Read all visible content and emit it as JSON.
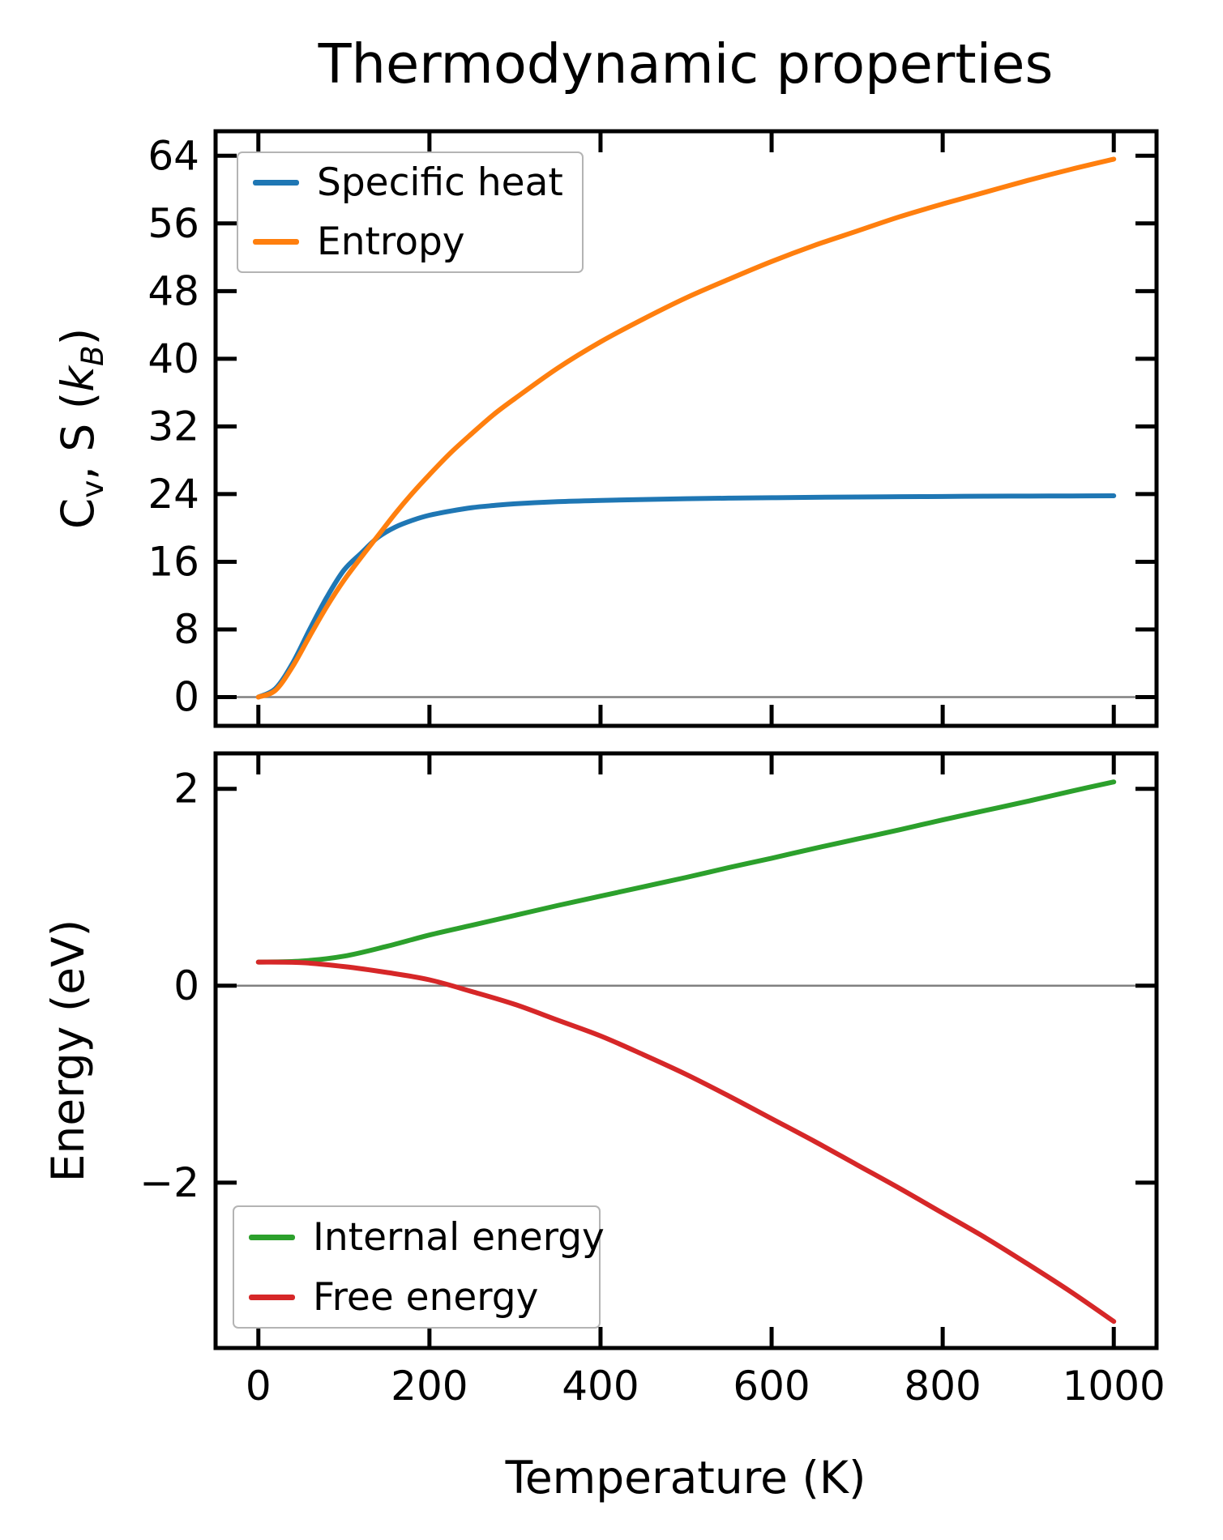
{
  "title": "Thermodynamic properties",
  "xlabel": "Temperature (K)",
  "ylabel_top": {
    "c": "C",
    "c_sub": "v",
    "mid": ", S (",
    "k": "k",
    "k_sub": "B",
    "close": ")"
  },
  "ylabel_bottom": "Energy (eV)",
  "colors": {
    "specific_heat": "#1f77b4",
    "entropy": "#ff7f0e",
    "internal_energy": "#2ca02c",
    "free_energy": "#d62728",
    "zero_line": "#808080",
    "legend_border": "#b4b4b4",
    "spine": "#000000"
  },
  "legend_top": {
    "entries": [
      {
        "label": "Specific heat",
        "color": "#1f77b4"
      },
      {
        "label": "Entropy",
        "color": "#ff7f0e"
      }
    ]
  },
  "legend_bottom": {
    "entries": [
      {
        "label": "Internal energy",
        "color": "#2ca02c"
      },
      {
        "label": "Free energy",
        "color": "#d62728"
      }
    ]
  },
  "chart_data": [
    {
      "type": "line",
      "title": "Thermodynamic properties",
      "ylabel": "Cv, S (kB)",
      "xlim": [
        -50,
        1050
      ],
      "ylim": [
        -3.4,
        66.9
      ],
      "grid": false,
      "zero_line": 0,
      "legend_position": "upper left",
      "xticks": [
        0,
        200,
        400,
        600,
        800,
        1000
      ],
      "xtick_labels": [
        "",
        "",
        "",
        "",
        "",
        ""
      ],
      "yticks": [
        0,
        8,
        16,
        24,
        32,
        40,
        48,
        56,
        64
      ],
      "ytick_labels": [
        "0",
        "8",
        "16",
        "24",
        "32",
        "40",
        "48",
        "56",
        "64"
      ],
      "x": [
        0,
        20,
        40,
        60,
        80,
        100,
        120,
        140,
        160,
        180,
        200,
        225,
        250,
        275,
        300,
        350,
        400,
        450,
        500,
        550,
        600,
        650,
        700,
        750,
        800,
        850,
        900,
        950,
        1000
      ],
      "series": [
        {
          "name": "Specific heat",
          "color": "#1f77b4",
          "values": [
            0,
            1.0,
            4.0,
            8.0,
            11.8,
            15.0,
            17.0,
            18.9,
            20.1,
            20.9,
            21.5,
            22.0,
            22.4,
            22.65,
            22.85,
            23.1,
            23.25,
            23.36,
            23.45,
            23.52,
            23.57,
            23.62,
            23.66,
            23.69,
            23.72,
            23.75,
            23.77,
            23.78,
            23.8
          ]
        },
        {
          "name": "Entropy",
          "color": "#ff7f0e",
          "values": [
            0,
            0.8,
            3.6,
            7.2,
            10.7,
            13.8,
            16.5,
            19.1,
            21.7,
            24.1,
            26.3,
            28.9,
            31.2,
            33.4,
            35.3,
            38.9,
            42.0,
            44.7,
            47.2,
            49.4,
            51.5,
            53.4,
            55.1,
            56.8,
            58.3,
            59.7,
            61.1,
            62.4,
            63.6
          ]
        }
      ]
    },
    {
      "type": "line",
      "xlabel": "Temperature (K)",
      "ylabel": "Energy (eV)",
      "xlim": [
        -50,
        1050
      ],
      "ylim": [
        -3.68,
        2.36
      ],
      "grid": false,
      "zero_line": 0,
      "legend_position": "lower left",
      "xticks": [
        0,
        200,
        400,
        600,
        800,
        1000
      ],
      "xtick_labels": [
        "0",
        "200",
        "400",
        "600",
        "800",
        "1000"
      ],
      "yticks": [
        -2,
        0,
        2
      ],
      "ytick_labels": [
        "−2",
        "0",
        "2"
      ],
      "x": [
        0,
        50,
        100,
        150,
        200,
        250,
        300,
        350,
        400,
        450,
        500,
        550,
        600,
        650,
        700,
        750,
        800,
        850,
        900,
        950,
        1000
      ],
      "series": [
        {
          "name": "Internal energy",
          "color": "#2ca02c",
          "values": [
            0.24,
            0.25,
            0.3,
            0.4,
            0.515,
            0.615,
            0.715,
            0.815,
            0.91,
            1.005,
            1.1,
            1.2,
            1.295,
            1.395,
            1.49,
            1.585,
            1.685,
            1.78,
            1.875,
            1.975,
            2.07
          ]
        },
        {
          "name": "Free energy",
          "color": "#d62728",
          "values": [
            0.24,
            0.235,
            0.195,
            0.135,
            0.06,
            -0.06,
            -0.19,
            -0.35,
            -0.51,
            -0.7,
            -0.9,
            -1.12,
            -1.35,
            -1.58,
            -1.82,
            -2.06,
            -2.31,
            -2.56,
            -2.83,
            -3.11,
            -3.41
          ]
        }
      ]
    }
  ]
}
